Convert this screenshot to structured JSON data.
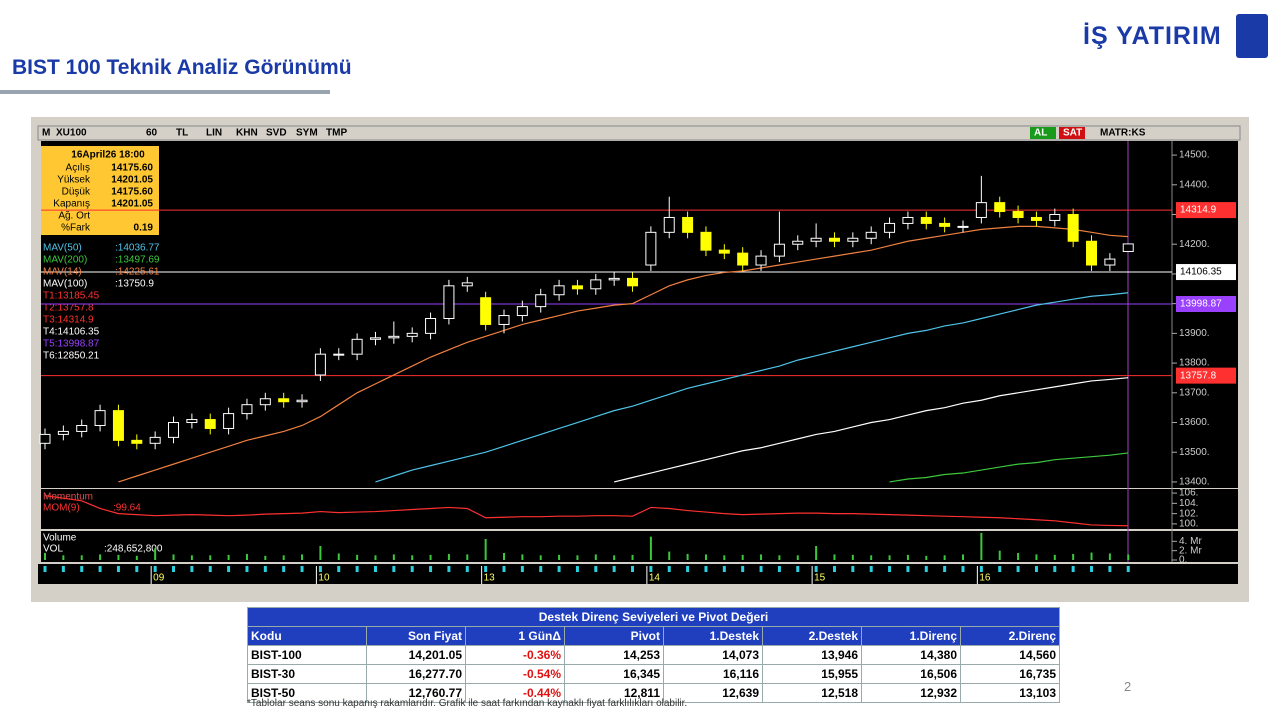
{
  "header": {
    "logo": "İŞ YATIRIM",
    "title": "BIST 100 Teknik Analiz Görünümü"
  },
  "toolbar": {
    "left": [
      "M",
      "XU100",
      "60",
      "TL",
      "LIN",
      "KHN",
      "SVD",
      "SYM",
      "TMP"
    ],
    "right": [
      "AL",
      "SAT",
      "MATR:KS"
    ]
  },
  "info_box": {
    "date": "16April26 18:00",
    "rows": [
      [
        "Açılış",
        "14175.60"
      ],
      [
        "Yüksek",
        "14201.05"
      ],
      [
        "Düşük",
        "14175.60"
      ],
      [
        "Kapanış",
        "14201.05"
      ],
      [
        "Ağ. Ort"
      ],
      [
        "%Fark",
        "0.19"
      ]
    ]
  },
  "chart_data": [
    {
      "type": "candlestick",
      "categories": [
        null,
        null,
        null,
        null,
        null,
        null,
        "09",
        null,
        null,
        null,
        null,
        null,
        null,
        null,
        null,
        "10",
        null,
        null,
        null,
        null,
        null,
        null,
        null,
        null,
        "13",
        null,
        null,
        null,
        null,
        null,
        null,
        null,
        null,
        "14",
        null,
        null,
        null,
        null,
        null,
        null,
        null,
        null,
        "15",
        null,
        null,
        null,
        null,
        null,
        null,
        null,
        null,
        "16",
        null,
        null,
        null,
        null,
        null,
        null,
        null,
        null
      ],
      "open": [
        13530,
        13560,
        13570,
        13590,
        13640,
        13540,
        13530,
        13550,
        13600,
        13610,
        13580,
        13630,
        13660,
        13680,
        13670,
        13760,
        13830,
        13830,
        13880,
        13885,
        13890,
        13900,
        13950,
        14060,
        14020,
        13930,
        13960,
        13990,
        14030,
        14060,
        14050,
        14080,
        14085,
        14130,
        14240,
        14290,
        14240,
        14180,
        14170,
        14130,
        14160,
        14200,
        14210,
        14220,
        14210,
        14220,
        14240,
        14270,
        14290,
        14270,
        14260,
        14290,
        14340,
        14310,
        14290,
        14280,
        14300,
        14210,
        14130,
        14175.6
      ],
      "high": [
        13580,
        13590,
        13610,
        13660,
        13660,
        13560,
        13570,
        13620,
        13630,
        13630,
        13650,
        13680,
        13700,
        13700,
        13695,
        13850,
        13850,
        13900,
        13905,
        13940,
        13920,
        13970,
        14080,
        14090,
        14040,
        13980,
        14010,
        14050,
        14080,
        14080,
        14100,
        14105,
        14105,
        14260,
        14360,
        14310,
        14260,
        14200,
        14190,
        14180,
        14310,
        14230,
        14270,
        14240,
        14240,
        14260,
        14290,
        14310,
        14310,
        14290,
        14280,
        14430,
        14360,
        14330,
        14310,
        14320,
        14320,
        14230,
        14170,
        14201.05
      ],
      "low": [
        13510,
        13540,
        13550,
        13570,
        13520,
        13510,
        13510,
        13530,
        13580,
        13560,
        13560,
        13610,
        13640,
        13650,
        13650,
        13740,
        13810,
        13810,
        13860,
        13865,
        13870,
        13880,
        13930,
        14040,
        13910,
        13900,
        13940,
        13970,
        14010,
        14030,
        14030,
        14060,
        14040,
        14110,
        14220,
        14220,
        14160,
        14150,
        14110,
        14110,
        14140,
        14180,
        14190,
        14190,
        14190,
        14200,
        14220,
        14250,
        14250,
        14240,
        14240,
        14270,
        14290,
        14270,
        14260,
        14260,
        14190,
        14110,
        14110,
        14175.6
      ],
      "close": [
        13560,
        13570,
        13590,
        13640,
        13540,
        13530,
        13550,
        13600,
        13610,
        13580,
        13630,
        13660,
        13680,
        13670,
        13675,
        13830,
        13830,
        13880,
        13885,
        13890,
        13900,
        13950,
        14060,
        14070,
        13930,
        13960,
        13990,
        14030,
        14060,
        14050,
        14080,
        14085,
        14060,
        14240,
        14290,
        14240,
        14180,
        14170,
        14130,
        14160,
        14200,
        14210,
        14220,
        14210,
        14220,
        14240,
        14270,
        14290,
        14270,
        14260,
        14260,
        14340,
        14310,
        14290,
        14280,
        14300,
        14210,
        14130,
        14150,
        14201.05
      ],
      "up_color": "#ffffff",
      "down_color": "#ffff00",
      "series": [
        {
          "name": "MAV(50)",
          "label": ":14036.77",
          "color": "#4fc3e8",
          "values": [
            null,
            null,
            null,
            null,
            null,
            null,
            null,
            null,
            null,
            null,
            null,
            null,
            null,
            null,
            null,
            null,
            null,
            null,
            13400,
            13420,
            13440,
            13455,
            13470,
            13485,
            13500,
            13520,
            13540,
            13560,
            13580,
            13600,
            13620,
            13640,
            13655,
            13675,
            13695,
            13715,
            13730,
            13745,
            13760,
            13775,
            13790,
            13810,
            13825,
            13840,
            13855,
            13870,
            13885,
            13900,
            13910,
            13925,
            13935,
            13950,
            13965,
            13980,
            13995,
            14005,
            14015,
            14025,
            14030,
            14036.77
          ]
        },
        {
          "name": "MAV(200)",
          "label": ":13497.69",
          "color": "#3cc83c",
          "values": [
            null,
            null,
            null,
            null,
            null,
            null,
            null,
            null,
            null,
            null,
            null,
            null,
            null,
            null,
            null,
            null,
            null,
            null,
            null,
            null,
            null,
            null,
            null,
            null,
            null,
            null,
            null,
            null,
            null,
            null,
            null,
            null,
            null,
            null,
            null,
            null,
            null,
            null,
            null,
            null,
            null,
            null,
            null,
            null,
            null,
            null,
            13400,
            13410,
            13415,
            13425,
            13430,
            13440,
            13450,
            13460,
            13465,
            13475,
            13480,
            13485,
            13490,
            13497.69
          ]
        },
        {
          "name": "MAV(14)",
          "label": ":14225.61",
          "color": "#f08040",
          "values": [
            null,
            null,
            null,
            null,
            13400,
            13420,
            13440,
            13460,
            13480,
            13500,
            13520,
            13540,
            13555,
            13570,
            13590,
            13620,
            13660,
            13700,
            13730,
            13760,
            13790,
            13820,
            13845,
            13870,
            13890,
            13910,
            13930,
            13945,
            13960,
            13975,
            13985,
            13995,
            14000,
            14030,
            14060,
            14080,
            14095,
            14105,
            14110,
            14120,
            14130,
            14140,
            14150,
            14160,
            14170,
            14180,
            14195,
            14210,
            14220,
            14230,
            14240,
            14250,
            14255,
            14260,
            14260,
            14255,
            14250,
            14240,
            14230,
            14225.61
          ]
        },
        {
          "name": "MAV(100)",
          "label": ":13750.9",
          "color": "#ffffff",
          "values": [
            null,
            null,
            null,
            null,
            null,
            null,
            null,
            null,
            null,
            null,
            null,
            null,
            null,
            null,
            null,
            null,
            null,
            null,
            null,
            null,
            null,
            null,
            null,
            null,
            null,
            null,
            null,
            null,
            null,
            null,
            null,
            13400,
            13415,
            13430,
            13445,
            13460,
            13475,
            13490,
            13505,
            13515,
            13530,
            13545,
            13560,
            13570,
            13585,
            13600,
            13610,
            13625,
            13640,
            13650,
            13665,
            13675,
            13690,
            13700,
            13710,
            13720,
            13730,
            13740,
            13745,
            13750.9
          ]
        }
      ],
      "levels": [
        {
          "label": "T1:13185.45",
          "value": 13185.45,
          "color": "#ff3030"
        },
        {
          "label": "T2:13757.8",
          "value": 13757.8,
          "color": "#ff3030"
        },
        {
          "label": "T3:14314.9",
          "value": 14314.9,
          "color": "#ff3030"
        },
        {
          "label": "T4:14106.35",
          "value": 14106.35,
          "color": "#ffffff"
        },
        {
          "label": "T5:13998.87",
          "value": 13998.87,
          "color": "#9a40ff"
        },
        {
          "label": "T6:12850.21",
          "value": 12850.21,
          "color": "#ffffff"
        }
      ],
      "ylim": [
        13383,
        14544
      ],
      "yticks": [
        {
          "value": 14500,
          "label": "14500."
        },
        {
          "value": 14400,
          "label": "14400."
        },
        {
          "value": 14300,
          "label": "14300."
        },
        {
          "value": 14200,
          "label": "14200."
        },
        {
          "value": 14100,
          "label": "14100."
        },
        {
          "value": 14000,
          "label": "14000."
        },
        {
          "value": 13900,
          "label": "13900."
        },
        {
          "value": 13800,
          "label": "13800."
        },
        {
          "value": 13700,
          "label": "13700."
        },
        {
          "value": 13600,
          "label": "13600."
        },
        {
          "value": 13500,
          "label": "13500."
        },
        {
          "value": 13400,
          "label": "13400."
        }
      ]
    },
    {
      "type": "line",
      "title": "Momentum",
      "series": [
        {
          "name": "MOM(9)",
          "label": ":99.64",
          "color": "#ff3030",
          "values": [
            105.5,
            105,
            104.5,
            103,
            102,
            101.8,
            101.6,
            101.7,
            101.8,
            101.7,
            101.6,
            101.7,
            101.9,
            102,
            102.1,
            102.4,
            102.2,
            102.3,
            102.4,
            102.6,
            102.8,
            103,
            103.2,
            103,
            101.2,
            101.3,
            101.4,
            101.4,
            101.5,
            101.5,
            101.6,
            101.6,
            101.5,
            103.2,
            103,
            102.6,
            102.3,
            102,
            101.8,
            101.9,
            102,
            102.1,
            102.1,
            102,
            102,
            101.9,
            101.8,
            101.7,
            101.6,
            101.5,
            101.4,
            101.3,
            101.2,
            101,
            100.8,
            100.6,
            100.2,
            99.8,
            99.7,
            99.64
          ]
        }
      ],
      "ylim": [
        99.2,
        106.6
      ],
      "yticks": [
        {
          "value": 106,
          "label": "106."
        },
        {
          "value": 104,
          "label": "104."
        },
        {
          "value": 102,
          "label": "102."
        },
        {
          "value": 100,
          "label": "100."
        }
      ]
    },
    {
      "type": "bar",
      "title": "Volume",
      "series": [
        {
          "name": "VOL",
          "label": ":248,652,800",
          "color": "#3cc83c",
          "values": [
            1.5,
            1.0,
            1.0,
            1.2,
            1.1,
            0.9,
            2.5,
            1.2,
            1.0,
            1.0,
            1.1,
            1.3,
            0.9,
            1.0,
            1.2,
            3.0,
            1.4,
            1.1,
            1.0,
            1.2,
            1.0,
            1.1,
            1.3,
            1.2,
            4.5,
            1.5,
            1.2,
            1.0,
            1.1,
            1.0,
            1.2,
            1.0,
            1.1,
            5.0,
            1.8,
            1.3,
            1.2,
            1.0,
            1.1,
            1.2,
            1.0,
            1.0,
            3.0,
            1.2,
            1.1,
            1.0,
            1.0,
            1.1,
            0.9,
            1.0,
            1.2,
            5.8,
            2.0,
            1.5,
            1.2,
            1.1,
            1.3,
            1.6,
            1.4,
            1.2
          ]
        }
      ],
      "ylim": [
        0,
        6
      ],
      "yticks": [
        {
          "value": 4,
          "label": "4. Mr"
        },
        {
          "value": 2,
          "label": "2. Mr"
        },
        {
          "value": 0,
          "label": "0."
        }
      ]
    }
  ],
  "table": {
    "title": "Destek Direnç Seviyeleri ve Pivot Değeri",
    "columns": [
      "Kodu",
      "Son Fiyat",
      "1 GünΔ",
      "Pivot",
      "1.Destek",
      "2.Destek",
      "1.Direnç",
      "2.Direnç"
    ],
    "rows": [
      [
        "BIST-100",
        "14,201.05",
        "-0.36%",
        "14,253",
        "14,073",
        "13,946",
        "14,380",
        "14,560"
      ],
      [
        "BIST-30",
        "16,277.70",
        "-0.54%",
        "16,345",
        "16,116",
        "15,955",
        "16,506",
        "16,735"
      ],
      [
        "BIST-50",
        "12,760.77",
        "-0.44%",
        "12,811",
        "12,639",
        "12,518",
        "12,932",
        "13,103"
      ]
    ]
  },
  "footnote": "*Tablolar seans sonu kapanış rakamlarıdır. Grafik ile saat farkından kaynaklı fiyat farklılıkları olabilir.",
  "page_number": "2"
}
